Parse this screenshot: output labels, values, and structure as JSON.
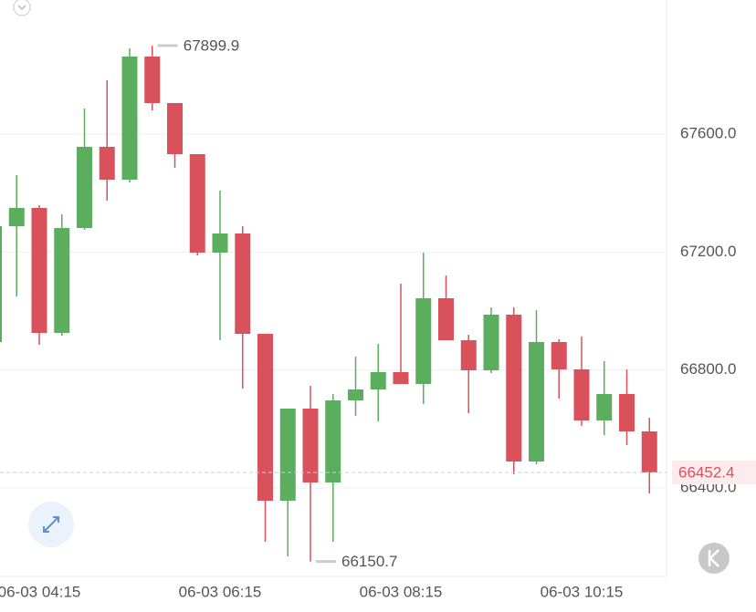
{
  "chart_data": {
    "type": "candlestick",
    "categories": [
      null,
      null,
      "06-03 04:15",
      null,
      null,
      null,
      null,
      null,
      null,
      null,
      "06-03 06:15",
      null,
      null,
      null,
      null,
      null,
      null,
      null,
      "06-03 08:15",
      null,
      null,
      null,
      null,
      null,
      null,
      null,
      "06-03 10:15",
      null,
      null,
      null
    ],
    "open": [
      66894.8,
      67287.6,
      67349.5,
      66925.7,
      67281.4,
      67556.7,
      67445.4,
      67862.9,
      67705.2,
      67532.0,
      67197.9,
      67262.9,
      66922.6,
      66356.6,
      66669.0,
      66418.5,
      66696.8,
      66734.0,
      66792.7,
      66752.5,
      67043.3,
      66901.0,
      66798.9,
      66987.6,
      66489.6,
      66894.8,
      66802.0,
      66628.8,
      66718.5,
      66591.7
    ],
    "high": [
      67312.4,
      67460.8,
      67358.7,
      67327.8,
      67686.6,
      67782.5,
      67890.7,
      67899.9,
      67705.2,
      67532.0,
      67408.2,
      67287.6,
      66922.6,
      66669.0,
      66746.3,
      66718.5,
      66845.3,
      66888.6,
      67092.7,
      67197.9,
      67120.6,
      66919.5,
      67012.3,
      67012.3,
      67003.0,
      66904.1,
      66913.4,
      66829.8,
      66802.0,
      66638.0
    ],
    "low": [
      66870.0,
      67049.4,
      66885.5,
      66916.4,
      67275.2,
      67374.2,
      67436.1,
      67680.4,
      67485.6,
      67188.6,
      66901.0,
      66737.1,
      66217.4,
      66167.9,
      66150.7,
      66217.4,
      66644.2,
      66625.7,
      66752.5,
      66684.5,
      66901.0,
      66653.5,
      66789.6,
      66446.3,
      66480.3,
      66703.0,
      66610.2,
      66579.3,
      66545.3,
      66381.4
    ],
    "close": [
      67287.6,
      67349.5,
      66925.7,
      67281.4,
      67556.7,
      67445.4,
      67862.9,
      67705.2,
      67532.0,
      67197.9,
      67262.9,
      66922.6,
      66356.6,
      66669.0,
      66418.5,
      66696.8,
      66734.0,
      66792.7,
      66752.5,
      67043.3,
      66901.0,
      66798.9,
      66987.6,
      66489.6,
      66894.8,
      66802.0,
      66628.8,
      66718.5,
      66591.7,
      66452.4
    ],
    "up_color": "#5aae5e",
    "down_color": "#d9525b",
    "ylim": [
      66099.9,
      68054.7
    ],
    "yticks": [
      {
        "value": 66400,
        "label": "66400.0"
      },
      {
        "value": 66800,
        "label": "66800.0"
      },
      {
        "value": 67200,
        "label": "67200.0"
      },
      {
        "value": 67600,
        "label": "67600.0"
      }
    ],
    "grid": true,
    "annotations": [
      67899.9,
      66150.7
    ],
    "last_price": 66452.4
  }
}
